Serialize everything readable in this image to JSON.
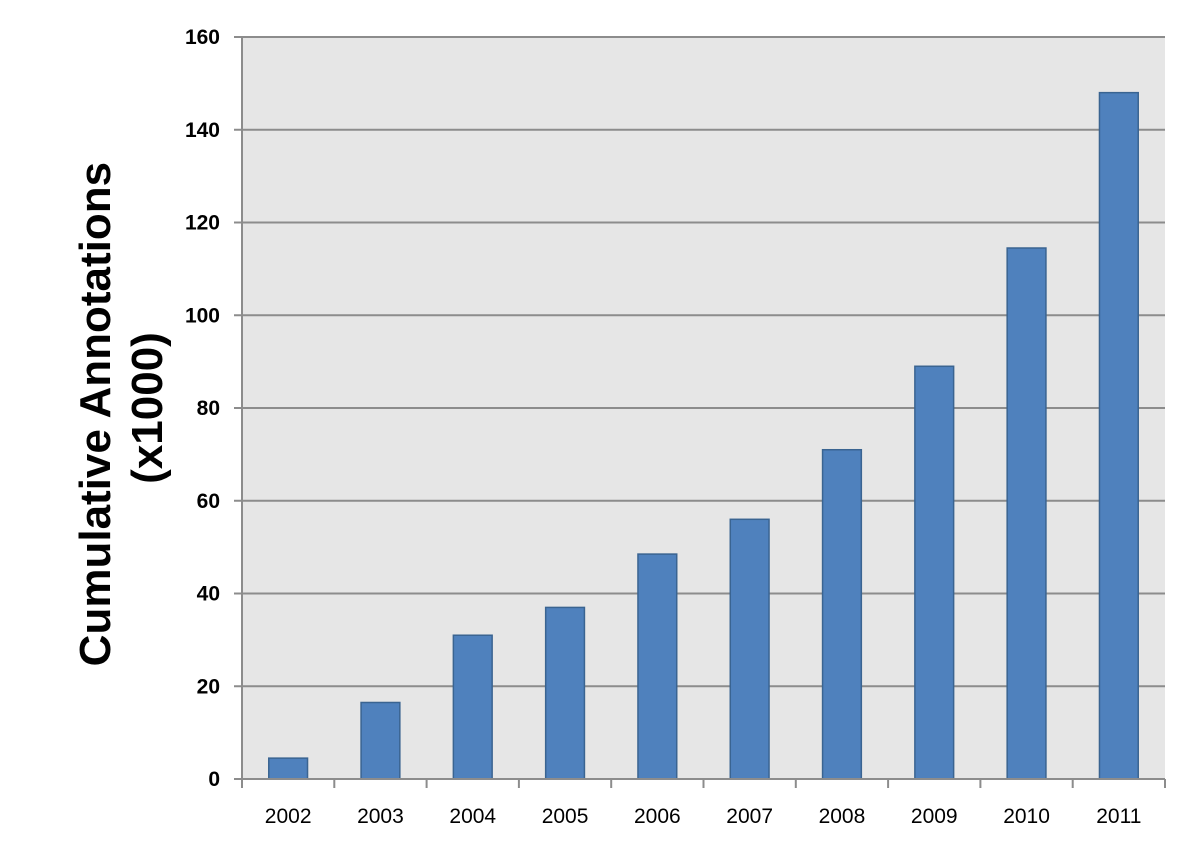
{
  "chart_data": {
    "type": "bar",
    "title": "",
    "xlabel": "",
    "ylabel": [
      "Cumulative Annotations",
      "(x1000)"
    ],
    "categories": [
      "2002",
      "2003",
      "2004",
      "2005",
      "2006",
      "2007",
      "2008",
      "2009",
      "2010",
      "2011"
    ],
    "series": [
      {
        "values": [
          4.5,
          16.5,
          31,
          37,
          48.5,
          56,
          71,
          89,
          114.5,
          148
        ]
      }
    ],
    "ylim": [
      0,
      160
    ],
    "yticks": [
      "0",
      "20",
      "40",
      "60",
      "80",
      "100",
      "120",
      "140",
      "160"
    ],
    "grid": true,
    "legend": "none",
    "colors": {
      "bar_fill": "#4f81bd",
      "bar_stroke": "#3a6491",
      "plot_background": "#e6e6e6",
      "gridline": "#8c8c8c",
      "axis": "#8c8c8c"
    }
  }
}
